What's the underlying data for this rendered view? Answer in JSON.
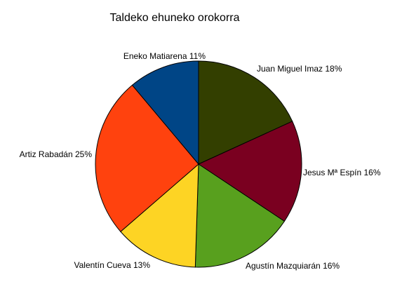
{
  "chart_data": {
    "type": "pie",
    "title": "Taldeko ehuneko orokorra",
    "slices": [
      {
        "name": "Juan Miguel Imaz",
        "label": "Juan Miguel Imaz 18%",
        "value": 18,
        "color": "#333f00"
      },
      {
        "name": "Jesus Mª Espín",
        "label": "Jesus Mª Espín 16%",
        "value": 16,
        "color": "#7a0020"
      },
      {
        "name": "Agustín Mazquiarán",
        "label": "Agustín Mazquiarán 16%",
        "value": 16,
        "color": "#58a01e"
      },
      {
        "name": "Valentín Cueva",
        "label": "Valentín Cueva 13%",
        "value": 13,
        "color": "#fdd424"
      },
      {
        "name": "Artiz Rabadán",
        "label": "Artiz Rabadán 25%",
        "value": 25,
        "color": "#ff420e"
      },
      {
        "name": "Eneko Matiarena",
        "label": "Eneko Matiarena 11%",
        "value": 11,
        "color": "#004586"
      }
    ],
    "start": "top",
    "direction": "clockwise",
    "legend": "none"
  }
}
